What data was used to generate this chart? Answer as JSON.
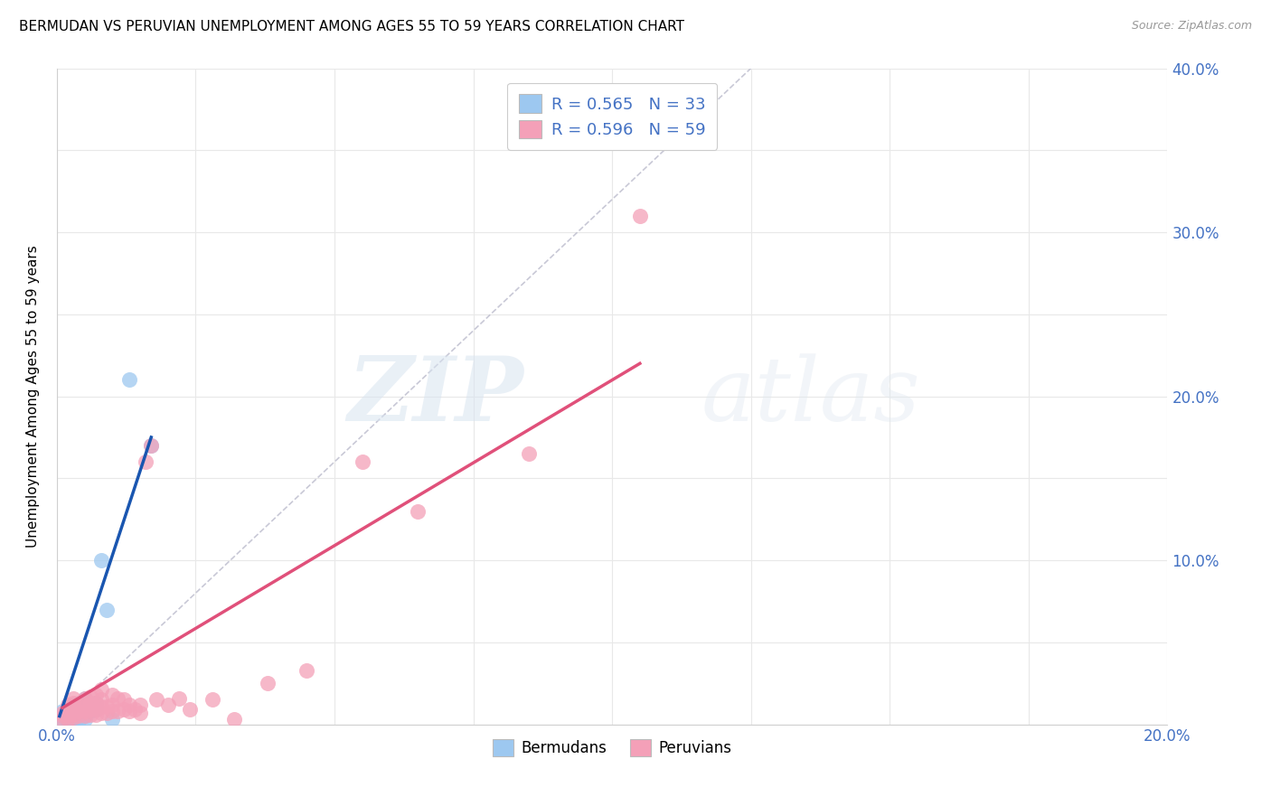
{
  "title": "BERMUDAN VS PERUVIAN UNEMPLOYMENT AMONG AGES 55 TO 59 YEARS CORRELATION CHART",
  "source": "Source: ZipAtlas.com",
  "ylabel": "Unemployment Among Ages 55 to 59 years",
  "xlim": [
    0.0,
    0.2
  ],
  "ylim": [
    0.0,
    0.4
  ],
  "xticks": [
    0.0,
    0.025,
    0.05,
    0.075,
    0.1,
    0.125,
    0.15,
    0.175,
    0.2
  ],
  "xticklabels": [
    "0.0%",
    "",
    "",
    "",
    "",
    "",
    "",
    "",
    "20.0%"
  ],
  "right_yticks": [
    0.0,
    0.1,
    0.2,
    0.3,
    0.4
  ],
  "right_yticklabels": [
    "",
    "10.0%",
    "20.0%",
    "30.0%",
    "40.0%"
  ],
  "bermuda_color": "#9DC8F0",
  "peru_color": "#F4A0B8",
  "bermuda_line_color": "#1A56B0",
  "peru_line_color": "#E0507A",
  "ref_line_color": "#BBBBCC",
  "legend_r_bermuda": "R = 0.565",
  "legend_n_bermuda": "N = 33",
  "legend_r_peru": "R = 0.596",
  "legend_n_peru": "N = 59",
  "legend_label_bermuda": "Bermudans",
  "legend_label_peru": "Peruvians",
  "watermark_zip": "ZIP",
  "watermark_atlas": "atlas",
  "background_color": "#FFFFFF",
  "bermuda_scatter_x": [
    0.0005,
    0.001,
    0.001,
    0.001,
    0.0015,
    0.002,
    0.002,
    0.002,
    0.002,
    0.003,
    0.003,
    0.003,
    0.003,
    0.003,
    0.004,
    0.004,
    0.004,
    0.004,
    0.004,
    0.005,
    0.005,
    0.005,
    0.005,
    0.005,
    0.006,
    0.006,
    0.007,
    0.007,
    0.008,
    0.009,
    0.01,
    0.013,
    0.017
  ],
  "bermuda_scatter_y": [
    0.005,
    0.003,
    0.006,
    0.008,
    0.004,
    0.002,
    0.005,
    0.007,
    0.009,
    0.002,
    0.004,
    0.006,
    0.009,
    0.012,
    0.002,
    0.004,
    0.007,
    0.01,
    0.013,
    0.003,
    0.005,
    0.008,
    0.011,
    0.016,
    0.008,
    0.012,
    0.009,
    0.013,
    0.1,
    0.07,
    0.003,
    0.21,
    0.17
  ],
  "peru_scatter_x": [
    0.001,
    0.001,
    0.001,
    0.002,
    0.002,
    0.002,
    0.002,
    0.003,
    0.003,
    0.003,
    0.003,
    0.003,
    0.004,
    0.004,
    0.004,
    0.005,
    0.005,
    0.005,
    0.005,
    0.006,
    0.006,
    0.006,
    0.006,
    0.007,
    0.007,
    0.007,
    0.007,
    0.008,
    0.008,
    0.008,
    0.008,
    0.009,
    0.009,
    0.01,
    0.01,
    0.01,
    0.011,
    0.011,
    0.012,
    0.012,
    0.013,
    0.013,
    0.014,
    0.015,
    0.015,
    0.016,
    0.017,
    0.018,
    0.02,
    0.022,
    0.024,
    0.028,
    0.032,
    0.038,
    0.045,
    0.055,
    0.065,
    0.085,
    0.105
  ],
  "peru_scatter_y": [
    0.003,
    0.005,
    0.007,
    0.003,
    0.005,
    0.008,
    0.012,
    0.004,
    0.006,
    0.009,
    0.013,
    0.016,
    0.005,
    0.008,
    0.012,
    0.005,
    0.008,
    0.012,
    0.016,
    0.006,
    0.009,
    0.013,
    0.017,
    0.006,
    0.009,
    0.013,
    0.018,
    0.007,
    0.011,
    0.015,
    0.021,
    0.007,
    0.011,
    0.008,
    0.012,
    0.018,
    0.008,
    0.016,
    0.009,
    0.015,
    0.008,
    0.012,
    0.009,
    0.007,
    0.012,
    0.16,
    0.17,
    0.015,
    0.012,
    0.016,
    0.009,
    0.015,
    0.003,
    0.025,
    0.033,
    0.16,
    0.13,
    0.165,
    0.31
  ],
  "bermuda_trend_x": [
    0.0005,
    0.017
  ],
  "bermuda_trend_y": [
    0.005,
    0.175
  ],
  "peru_trend_x": [
    0.001,
    0.105
  ],
  "peru_trend_y": [
    0.01,
    0.22
  ],
  "ref_line_x": [
    0.0,
    0.125
  ],
  "ref_line_y": [
    0.0,
    0.4
  ]
}
